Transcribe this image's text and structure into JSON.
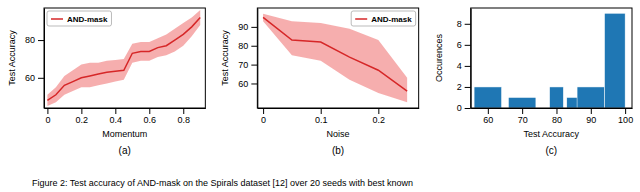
{
  "chart_data": [
    {
      "type": "line",
      "title": "(a)",
      "xlabel": "Momentum",
      "ylabel": "Test Accuracy",
      "x": [
        0.0,
        0.05,
        0.1,
        0.15,
        0.2,
        0.25,
        0.3,
        0.35,
        0.4,
        0.45,
        0.5,
        0.55,
        0.6,
        0.65,
        0.7,
        0.75,
        0.8,
        0.85,
        0.9
      ],
      "series": [
        {
          "type": "area",
          "color": "#f4a0a0",
          "lower": [
            45,
            47,
            51,
            53,
            55,
            55,
            56,
            57,
            58,
            59,
            68,
            69,
            69,
            71,
            72,
            74,
            77,
            82,
            88
          ],
          "upper": [
            51,
            55,
            61,
            64,
            67,
            68,
            68,
            69,
            69.5,
            70,
            78,
            79,
            79,
            81,
            83,
            86,
            89,
            92,
            96
          ]
        },
        {
          "type": "line",
          "name": "AND-mask",
          "color": "#d62728",
          "values": [
            48,
            51,
            56,
            58,
            60,
            61,
            62,
            63,
            63.5,
            64,
            73,
            74,
            74,
            76,
            77,
            80,
            83,
            87,
            92
          ]
        }
      ],
      "xlim": [
        -0.02,
        0.93
      ],
      "xticks": [
        0,
        0.2,
        0.4,
        0.6,
        0.8
      ],
      "ylim": [
        44,
        97
      ],
      "yticks": [
        60,
        80
      ],
      "legend": "upper left"
    },
    {
      "type": "line",
      "title": "(b)",
      "xlabel": "Noise",
      "ylabel": "Test Accuracy",
      "x": [
        0.0,
        0.05,
        0.1,
        0.15,
        0.2,
        0.25
      ],
      "series": [
        {
          "type": "area",
          "color": "#f4a0a0",
          "lower": [
            93,
            75,
            72,
            62,
            55,
            50
          ],
          "upper": [
            97,
            93,
            92,
            89,
            83,
            63
          ]
        },
        {
          "type": "line",
          "name": "AND-mask",
          "color": "#d62728",
          "values": [
            95,
            83,
            82,
            74,
            67,
            56
          ]
        }
      ],
      "xlim": [
        -0.01,
        0.27
      ],
      "xticks": [
        0,
        0.1,
        0.2
      ],
      "ylim": [
        47,
        100
      ],
      "yticks": [
        60,
        70,
        80,
        90
      ],
      "legend": "upper right"
    },
    {
      "type": "bar",
      "title": "(c)",
      "xlabel": "Test Accuracy",
      "ylabel": "Occurences",
      "x": [
        60,
        70,
        80,
        85,
        90,
        97
      ],
      "widths": [
        8,
        8,
        4,
        4,
        8,
        6
      ],
      "values": [
        2,
        1,
        2,
        1,
        2,
        9
      ],
      "color": "#1f77b4",
      "xlim": [
        55,
        102
      ],
      "xticks": [
        60,
        70,
        80,
        90,
        100
      ],
      "ylim": [
        0,
        9.5
      ],
      "yticks": [
        0,
        2,
        4,
        6,
        8
      ]
    }
  ],
  "caption": "Figure 2: Test accuracy of AND-mask on the Spirals dataset [12] over 20 seeds with best known"
}
